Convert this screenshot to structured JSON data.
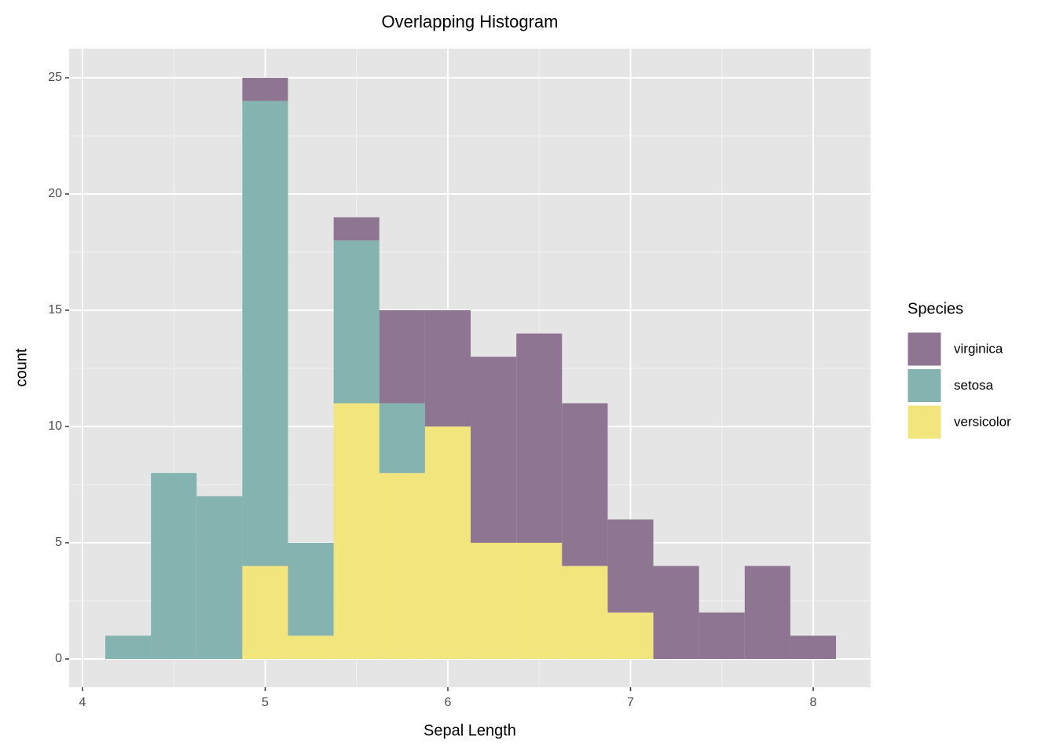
{
  "chart_data": {
    "type": "histogram",
    "title": "Overlapping Histogram",
    "x_label": "Sepal Length",
    "y_label": "count",
    "legend_title": "Species",
    "legend_position": "right",
    "bins": [
      4.125,
      4.375,
      4.625,
      4.875,
      5.125,
      5.375,
      5.625,
      5.875,
      6.125,
      6.375,
      6.625,
      6.875,
      7.125,
      7.375,
      7.625,
      7.875,
      8.125
    ],
    "stacked": true,
    "series": [
      {
        "name": "virginica",
        "color": "#8e7592",
        "values": [
          0,
          0,
          0,
          1,
          0,
          1,
          4,
          5,
          8,
          9,
          7,
          4,
          4,
          2,
          4,
          1
        ]
      },
      {
        "name": "setosa",
        "color": "#84b3b0",
        "values": [
          1,
          8,
          7,
          20,
          4,
          7,
          3,
          0,
          0,
          0,
          0,
          0,
          0,
          0,
          0,
          0
        ]
      },
      {
        "name": "versicolor",
        "color": "#f2e57e",
        "values": [
          0,
          0,
          0,
          4,
          1,
          11,
          8,
          10,
          5,
          5,
          4,
          2,
          0,
          0,
          0,
          0
        ]
      }
    ],
    "xlim": [
      3.927,
      8.314
    ],
    "ylim": [
      -1.216,
      26.25
    ],
    "xticks": [
      4,
      5,
      6,
      7,
      8
    ],
    "yticks": [
      0,
      5,
      10,
      15,
      20,
      25
    ],
    "grid": true
  }
}
